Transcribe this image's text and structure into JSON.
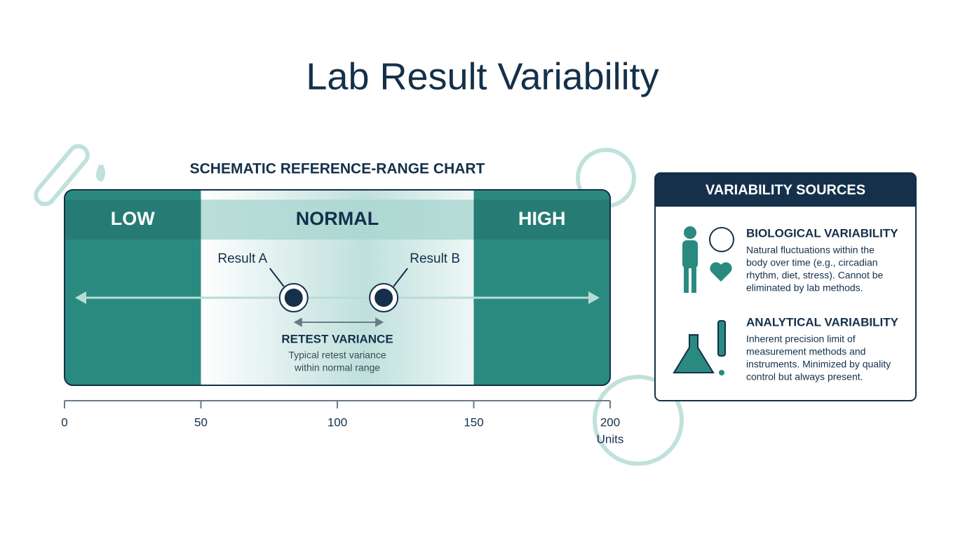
{
  "chart_data": {
    "type": "range",
    "title": "Lab Result Variability",
    "subtitle": "SCHEMATIC REFERENCE-RANGE CHART",
    "zones": [
      {
        "label": "LOW",
        "start": 0,
        "end": 50
      },
      {
        "label": "NORMAL",
        "start": 50,
        "end": 150
      },
      {
        "label": "HIGH",
        "start": 150,
        "end": 200
      }
    ],
    "points": [
      {
        "name": "Result A",
        "value": 84
      },
      {
        "name": "Result B",
        "value": 117
      }
    ],
    "annotation": {
      "title": "RETEST VARIANCE",
      "text": [
        "Typical retest variance",
        "within normal range"
      ]
    },
    "xlim": [
      0,
      200
    ],
    "xticks": [
      0,
      50,
      100,
      150,
      200
    ],
    "x_label": "Units",
    "color": "#2a8a80"
  },
  "sidebar": {
    "title": "VARIABILITY SOURCES",
    "sections": [
      {
        "title": "BIOLOGICAL VARIABILITY",
        "lines": [
          "Natural fluctuations within the",
          "body over time (e.g., circadian",
          "rhythm, diet, stress). Cannot be",
          "eliminated by lab methods."
        ]
      },
      {
        "title": "ANALYTICAL VARIABILITY",
        "lines": [
          "Inherent precision limit of",
          "measurement methods and",
          "instruments. Minimized by quality",
          "control but always present."
        ]
      }
    ]
  }
}
